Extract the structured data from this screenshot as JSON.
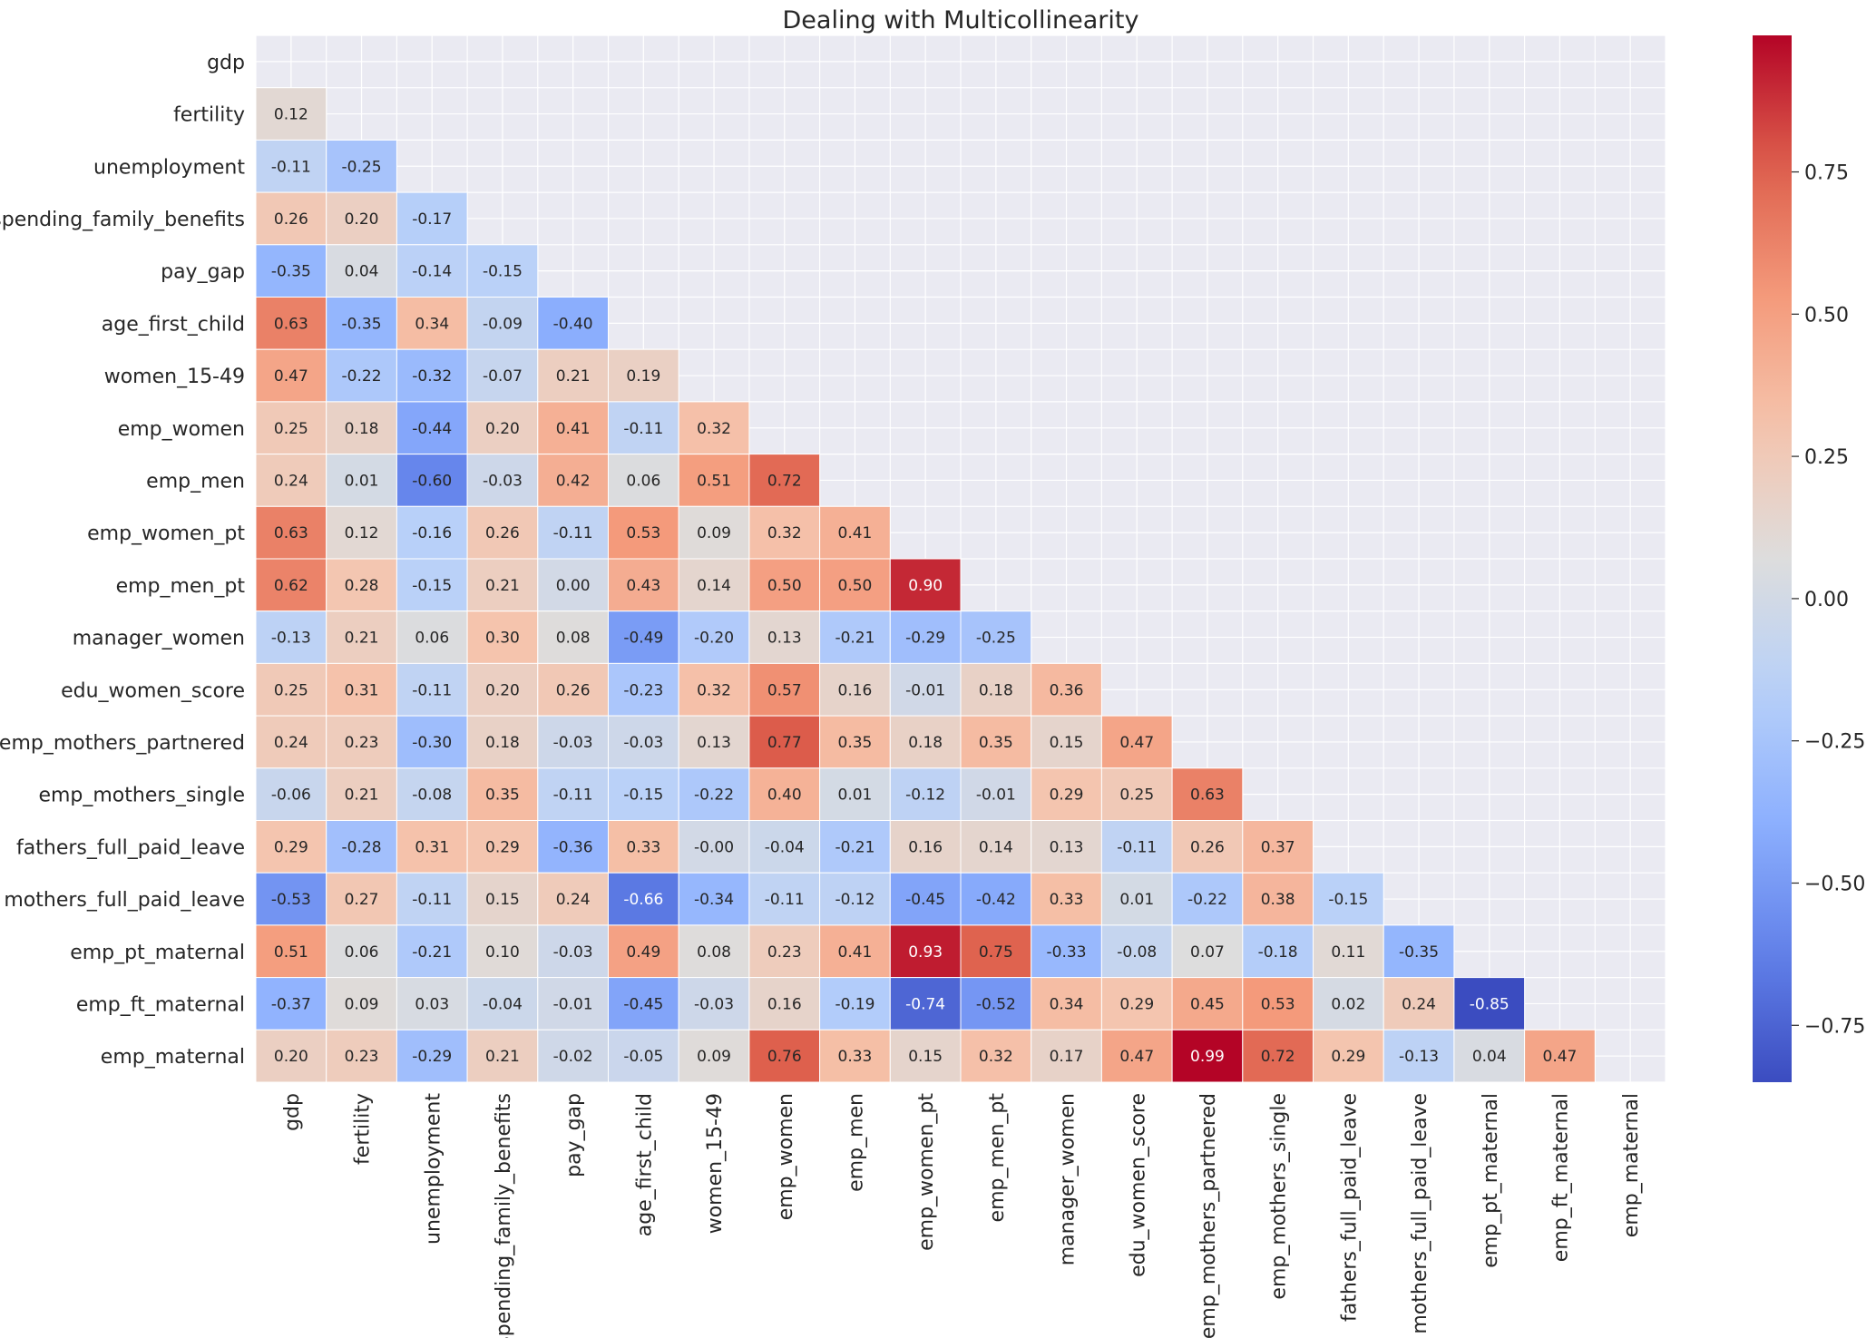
{
  "chart_data": {
    "type": "heatmap",
    "title": "Dealing with Multicollinearity",
    "xlabel": "",
    "ylabel": "",
    "mask": "upper-triangle-including-diagonal",
    "colormap": "coolwarm",
    "vmin": -0.85,
    "vmax": 0.99,
    "colorbar_ticks": [
      {
        "value": 0.75,
        "label": "0.75"
      },
      {
        "value": 0.5,
        "label": "0.50"
      },
      {
        "value": 0.25,
        "label": "0.25"
      },
      {
        "value": 0.0,
        "label": "0.00"
      },
      {
        "value": -0.25,
        "label": "−0.25"
      },
      {
        "value": -0.5,
        "label": "−0.50"
      },
      {
        "value": -0.75,
        "label": "−0.75"
      }
    ],
    "colorbar_placement": "right",
    "grid": true,
    "variables": [
      "gdp",
      "fertility",
      "unemployment",
      "spending_family_benefits",
      "pay_gap",
      "age_first_child",
      "women_15-49",
      "emp_women",
      "emp_men",
      "emp_women_pt",
      "emp_men_pt",
      "manager_women",
      "edu_women_score",
      "emp_mothers_partnered",
      "emp_mothers_single",
      "fathers_full_paid_leave",
      "mothers_full_paid_leave",
      "emp_pt_maternal",
      "emp_ft_maternal",
      "emp_maternal"
    ],
    "rows": [
      {
        "labels": []
      },
      {
        "labels": [
          "0.12"
        ]
      },
      {
        "labels": [
          "-0.11",
          "-0.25"
        ]
      },
      {
        "labels": [
          "0.26",
          "0.20",
          "-0.17"
        ]
      },
      {
        "labels": [
          "-0.35",
          "0.04",
          "-0.14",
          "-0.15"
        ]
      },
      {
        "labels": [
          "0.63",
          "-0.35",
          "0.34",
          "-0.09",
          "-0.40"
        ]
      },
      {
        "labels": [
          "0.47",
          "-0.22",
          "-0.32",
          "-0.07",
          "0.21",
          "0.19"
        ]
      },
      {
        "labels": [
          "0.25",
          "0.18",
          "-0.44",
          "0.20",
          "0.41",
          "-0.11",
          "0.32"
        ]
      },
      {
        "labels": [
          "0.24",
          "0.01",
          "-0.60",
          "-0.03",
          "0.42",
          "0.06",
          "0.51",
          "0.72"
        ]
      },
      {
        "labels": [
          "0.63",
          "0.12",
          "-0.16",
          "0.26",
          "-0.11",
          "0.53",
          "0.09",
          "0.32",
          "0.41"
        ]
      },
      {
        "labels": [
          "0.62",
          "0.28",
          "-0.15",
          "0.21",
          "0.00",
          "0.43",
          "0.14",
          "0.50",
          "0.50",
          "0.90"
        ]
      },
      {
        "labels": [
          "-0.13",
          "0.21",
          "0.06",
          "0.30",
          "0.08",
          "-0.49",
          "-0.20",
          "0.13",
          "-0.21",
          "-0.29",
          "-0.25"
        ]
      },
      {
        "labels": [
          "0.25",
          "0.31",
          "-0.11",
          "0.20",
          "0.26",
          "-0.23",
          "0.32",
          "0.57",
          "0.16",
          "-0.01",
          "0.18",
          "0.36"
        ]
      },
      {
        "labels": [
          "0.24",
          "0.23",
          "-0.30",
          "0.18",
          "-0.03",
          "-0.03",
          "0.13",
          "0.77",
          "0.35",
          "0.18",
          "0.35",
          "0.15",
          "0.47"
        ]
      },
      {
        "labels": [
          "-0.06",
          "0.21",
          "-0.08",
          "0.35",
          "-0.11",
          "-0.15",
          "-0.22",
          "0.40",
          "0.01",
          "-0.12",
          "-0.01",
          "0.29",
          "0.25",
          "0.63"
        ]
      },
      {
        "labels": [
          "0.29",
          "-0.28",
          "0.31",
          "0.29",
          "-0.36",
          "0.33",
          "-0.00",
          "-0.04",
          "-0.21",
          "0.16",
          "0.14",
          "0.13",
          "-0.11",
          "0.26",
          "0.37"
        ]
      },
      {
        "labels": [
          "-0.53",
          "0.27",
          "-0.11",
          "0.15",
          "0.24",
          "-0.66",
          "-0.34",
          "-0.11",
          "-0.12",
          "-0.45",
          "-0.42",
          "0.33",
          "0.01",
          "-0.22",
          "0.38",
          "-0.15"
        ]
      },
      {
        "labels": [
          "0.51",
          "0.06",
          "-0.21",
          "0.10",
          "-0.03",
          "0.49",
          "0.08",
          "0.23",
          "0.41",
          "0.93",
          "0.75",
          "-0.33",
          "-0.08",
          "0.07",
          "-0.18",
          "0.11",
          "-0.35"
        ]
      },
      {
        "labels": [
          "-0.37",
          "0.09",
          "0.03",
          "-0.04",
          "-0.01",
          "-0.45",
          "-0.03",
          "0.16",
          "-0.19",
          "-0.74",
          "-0.52",
          "0.34",
          "0.29",
          "0.45",
          "0.53",
          "0.02",
          "0.24",
          "-0.85"
        ]
      },
      {
        "labels": [
          "0.20",
          "0.23",
          "-0.29",
          "0.21",
          "-0.02",
          "-0.05",
          "0.09",
          "0.76",
          "0.33",
          "0.15",
          "0.32",
          "0.17",
          "0.47",
          "0.99",
          "0.72",
          "0.29",
          "-0.13",
          "0.04",
          "0.47"
        ]
      }
    ]
  }
}
